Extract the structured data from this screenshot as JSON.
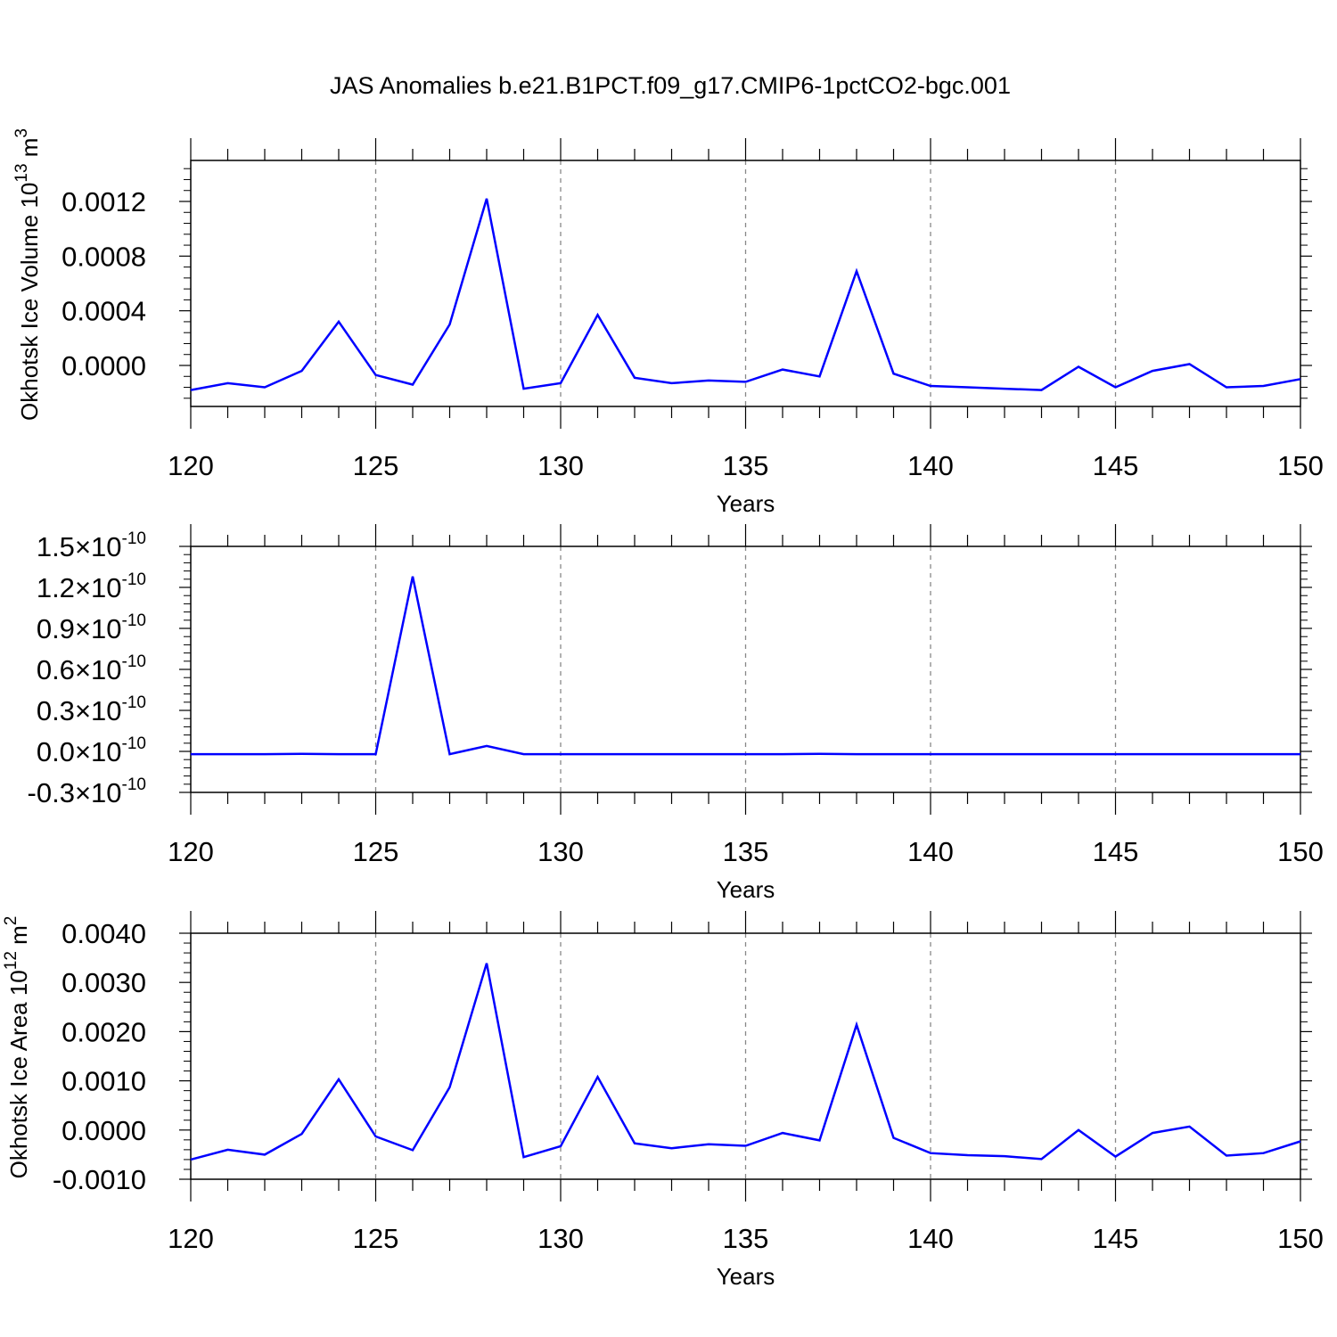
{
  "title": "JAS Anomalies b.e21.B1PCT.f09_g17.CMIP6-1pctCO2-bgc.001",
  "chart_data": [
    {
      "type": "line",
      "ylabel_main": "Okhotsk Ice Volume 10",
      "ylabel_exp": "13",
      "ylabel_unit": "m",
      "ylabel_unit_exp": "3",
      "xlabel": "Years",
      "xlim": [
        120,
        150
      ],
      "ylim": [
        -0.0003,
        0.0015
      ],
      "yticks": [
        0.0,
        0.0004,
        0.0008,
        0.0012
      ],
      "ytick_labels": [
        "0.0000",
        "0.0004",
        "0.0008",
        "0.0012"
      ],
      "xticks": [
        120,
        125,
        130,
        135,
        140,
        145,
        150
      ],
      "xtick_labels": [
        "120",
        "125",
        "130",
        "135",
        "140",
        "145",
        "150"
      ],
      "grid": "dashed vertical at major x ticks",
      "line_color": "#0000ff",
      "series": [
        {
          "x": [
            120,
            121,
            122,
            123,
            124,
            125,
            126,
            127,
            128,
            129,
            130,
            131,
            132,
            133,
            134,
            135,
            136,
            137,
            138,
            139,
            140,
            141,
            142,
            143,
            144,
            145,
            146,
            147,
            148,
            149,
            150
          ],
          "y": [
            -0.00018,
            -0.00013,
            -0.00016,
            -4e-05,
            0.00032,
            -7e-05,
            -0.00014,
            0.0003,
            0.00122,
            -0.00017,
            -0.00013,
            0.00037,
            -9e-05,
            -0.00013,
            -0.00011,
            -0.00012,
            -3e-05,
            -8e-05,
            0.00069,
            -6e-05,
            -0.00015,
            -0.00016,
            -0.00017,
            -0.00018,
            -1e-05,
            -0.00016,
            -4e-05,
            1e-05,
            -0.00016,
            -0.00015,
            -0.0001
          ]
        }
      ]
    },
    {
      "type": "line",
      "xlabel": "Years",
      "xlim": [
        120,
        150
      ],
      "ylim": [
        -3e-11,
        1.5e-10
      ],
      "yticks": [
        -3e-11,
        0.0,
        3e-11,
        6e-11,
        9e-11,
        1.2e-10,
        1.5e-10
      ],
      "ytick_mantissas": [
        "-0.3",
        "0.0",
        "0.3",
        "0.6",
        "0.9",
        "1.2",
        "1.5"
      ],
      "ytick_times": "×10",
      "ytick_exponent": "-10",
      "xticks": [
        120,
        125,
        130,
        135,
        140,
        145,
        150
      ],
      "xtick_labels": [
        "120",
        "125",
        "130",
        "135",
        "140",
        "145",
        "150"
      ],
      "grid": "dashed vertical at major x ticks",
      "line_color": "#0000ff",
      "series": [
        {
          "x": [
            120,
            121,
            122,
            123,
            124,
            125,
            126,
            127,
            128,
            129,
            130,
            131,
            132,
            133,
            134,
            135,
            136,
            137,
            138,
            139,
            140,
            141,
            142,
            143,
            144,
            145,
            146,
            147,
            148,
            149,
            150
          ],
          "y": [
            -2e-12,
            -2e-12,
            -2e-12,
            -1.8e-12,
            -2e-12,
            -2e-12,
            1.28e-10,
            -2e-12,
            4e-12,
            -2e-12,
            -2e-12,
            -2e-12,
            -2e-12,
            -2e-12,
            -2e-12,
            -2e-12,
            -2e-12,
            -1.8e-12,
            -2e-12,
            -2e-12,
            -2e-12,
            -2e-12,
            -2e-12,
            -2e-12,
            -2e-12,
            -2e-12,
            -2e-12,
            -2e-12,
            -2e-12,
            -2e-12,
            -2e-12
          ]
        }
      ]
    },
    {
      "type": "line",
      "ylabel_main": "Okhotsk Ice Area 10",
      "ylabel_exp": "12",
      "ylabel_unit": "m",
      "ylabel_unit_exp": "2",
      "xlabel": "Years",
      "xlim": [
        120,
        150
      ],
      "ylim": [
        -0.001,
        0.004
      ],
      "yticks": [
        -0.001,
        0.0,
        0.001,
        0.002,
        0.003,
        0.004
      ],
      "ytick_labels": [
        "-0.0010",
        "0.0000",
        "0.0010",
        "0.0020",
        "0.0030",
        "0.0040"
      ],
      "xticks": [
        120,
        125,
        130,
        135,
        140,
        145,
        150
      ],
      "xtick_labels": [
        "120",
        "125",
        "130",
        "135",
        "140",
        "145",
        "150"
      ],
      "grid": "dashed vertical at major x ticks",
      "line_color": "#0000ff",
      "series": [
        {
          "x": [
            120,
            121,
            122,
            123,
            124,
            125,
            126,
            127,
            128,
            129,
            130,
            131,
            132,
            133,
            134,
            135,
            136,
            137,
            138,
            139,
            140,
            141,
            142,
            143,
            144,
            145,
            146,
            147,
            148,
            149,
            150
          ],
          "y": [
            -0.0006,
            -0.0004,
            -0.0005,
            -8e-05,
            0.00103,
            -0.00013,
            -0.00041,
            0.00087,
            0.00339,
            -0.00055,
            -0.00033,
            0.00108,
            -0.00027,
            -0.00037,
            -0.00029,
            -0.00032,
            -6e-05,
            -0.00021,
            0.00214,
            -0.00016,
            -0.00047,
            -0.00051,
            -0.00053,
            -0.00059,
            0.0,
            -0.00054,
            -6e-05,
            7e-05,
            -0.00052,
            -0.00047,
            -0.00023
          ]
        }
      ]
    }
  ]
}
